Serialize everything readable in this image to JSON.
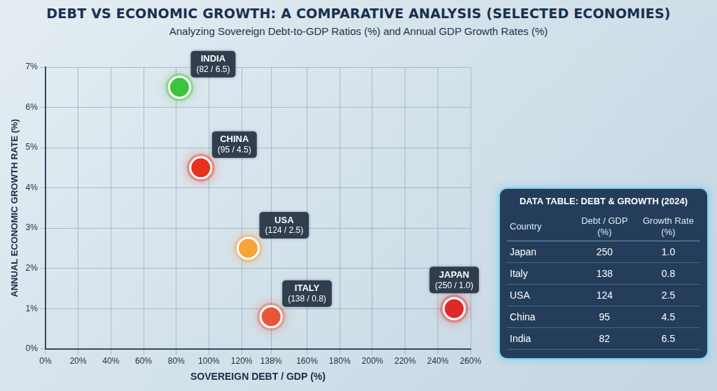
{
  "chart_data": {
    "type": "scatter",
    "title": "DEBT VS ECONOMIC GROWTH: A COMPARATIVE ANALYSIS (SELECTED ECONOMIES)",
    "subtitle": "Analyzing Sovereign Debt-to-GDP Ratios (%) and Annual GDP Growth Rates (%)",
    "x_label": "SOVEREIGN DEBT / GDP (%)",
    "y_label": "ANNUAL ECONOMIC GROWTH RATE (%)",
    "series": [
      {
        "name": "INDIA",
        "color": "#3cc43c",
        "x": [
          82
        ],
        "values": [
          6.5
        ],
        "value_labels": [
          "(82 / 6.5)"
        ]
      },
      {
        "name": "CHINA",
        "color": "#e8321e",
        "x": [
          95
        ],
        "values": [
          4.5
        ],
        "value_labels": [
          "(95 / 4.5)"
        ]
      },
      {
        "name": "USA",
        "color": "#f5a33a",
        "x": [
          124
        ],
        "values": [
          2.5
        ],
        "value_labels": [
          "(124 / 2.5)"
        ]
      },
      {
        "name": "JAPAN",
        "color": "#e02828",
        "x": [
          250
        ],
        "values": [
          1.0
        ],
        "value_labels": [
          "(250 / 1.0)"
        ]
      },
      {
        "name": "ITALY",
        "color": "#e8553a",
        "x": [
          138
        ],
        "values": [
          0.8
        ],
        "value_labels": [
          "(138 / 0.8)"
        ]
      }
    ],
    "xlim": [
      0,
      260
    ],
    "xticks": [
      {
        "value": 0,
        "label": "0%"
      },
      {
        "value": 20,
        "label": "20%"
      },
      {
        "value": 40,
        "label": "40%"
      },
      {
        "value": 60,
        "label": "60%"
      },
      {
        "value": 80,
        "label": "80%"
      },
      {
        "value": 100,
        "label": "100%"
      },
      {
        "value": 120,
        "label": "120%"
      },
      {
        "value": 138,
        "label": "138%"
      },
      {
        "value": 160,
        "label": "160%"
      },
      {
        "value": 180,
        "label": "180%"
      },
      {
        "value": 200,
        "label": "200%"
      },
      {
        "value": 220,
        "label": "220%"
      },
      {
        "value": 240,
        "label": "240%"
      },
      {
        "value": 260,
        "label": "260%"
      }
    ],
    "ylim": [
      0,
      7
    ],
    "yticks": [
      {
        "value": 0,
        "label": "0%"
      },
      {
        "value": 1,
        "label": "1%"
      },
      {
        "value": 2,
        "label": "2%"
      },
      {
        "value": 3,
        "label": "3%"
      },
      {
        "value": 4,
        "label": "4%"
      },
      {
        "value": 5,
        "label": "5%"
      },
      {
        "value": 6,
        "label": "6%"
      },
      {
        "value": 7,
        "label": "7%"
      }
    ],
    "grid": true,
    "data_labels": true,
    "marker": "circle"
  },
  "table": {
    "title": "DATA TABLE: DEBT & GROWTH (2024)",
    "columns": [
      "Country",
      "Debt / GDP (%)",
      "Growth Rate (%)"
    ],
    "rows": [
      [
        "Japan",
        "250",
        "1.0"
      ],
      [
        "Italy",
        "138",
        "0.8"
      ],
      [
        "USA",
        "124",
        "2.5"
      ],
      [
        "China",
        "95",
        "4.5"
      ],
      [
        "India",
        "82",
        "6.5"
      ]
    ]
  }
}
